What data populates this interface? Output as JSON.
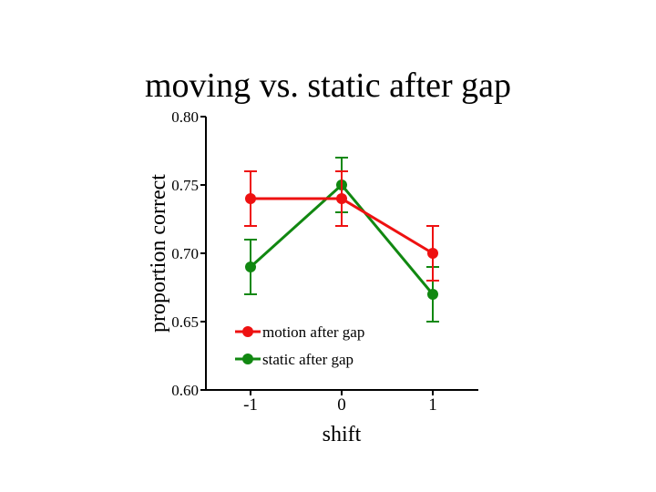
{
  "title": "moving vs. static after gap",
  "chart_data": {
    "type": "line",
    "title": "moving vs. static after gap",
    "xlabel": "shift",
    "ylabel": "proportion correct",
    "categories": [
      "-1",
      "0",
      "1"
    ],
    "yticks": [
      "0.80",
      "0.75",
      "0.70",
      "0.65",
      "0.60"
    ],
    "ylim": [
      0.6,
      0.8
    ],
    "grid": false,
    "legend_position": "bottom-left",
    "series": [
      {
        "name": "motion after gap",
        "color": "#ee1111",
        "values": [
          0.74,
          0.74,
          0.7
        ],
        "errors": [
          0.02,
          0.02,
          0.02
        ]
      },
      {
        "name": "static after gap",
        "color": "#118811",
        "values": [
          0.69,
          0.75,
          0.67
        ],
        "errors": [
          0.02,
          0.02,
          0.02
        ]
      }
    ]
  }
}
